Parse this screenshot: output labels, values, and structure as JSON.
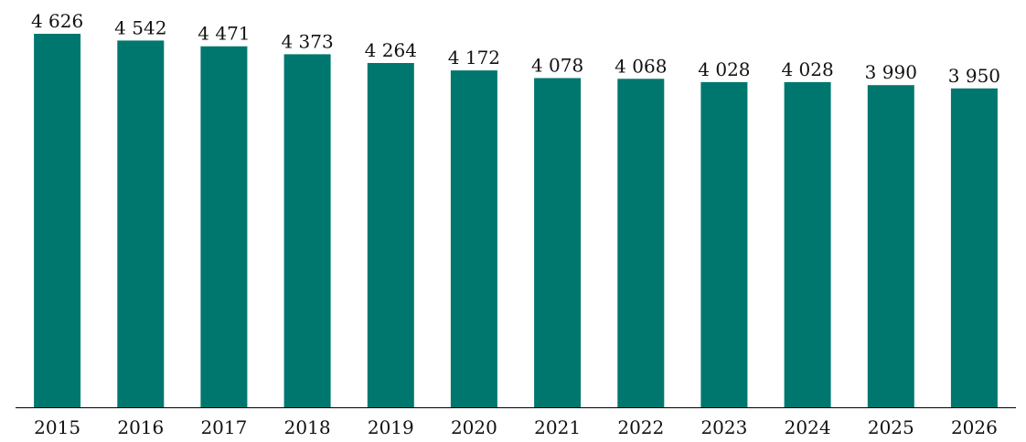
{
  "chart_data": {
    "type": "bar",
    "categories": [
      "2015",
      "2016",
      "2017",
      "2018",
      "2019",
      "2020",
      "2021",
      "2022",
      "2023",
      "2024",
      "2025",
      "2026"
    ],
    "values": [
      4626,
      4542,
      4471,
      4373,
      4264,
      4172,
      4078,
      4068,
      4028,
      4028,
      3990,
      3950
    ],
    "value_labels": [
      "4 626",
      "4 542",
      "4 471",
      "4 373",
      "4 264",
      "4 172",
      "4 078",
      "4 068",
      "4 028",
      "4 028",
      "3 990",
      "3 950"
    ],
    "title": "",
    "xlabel": "",
    "ylabel": "",
    "ylim": [
      0,
      4626
    ],
    "grid": false,
    "legend": "none",
    "colors": {
      "bar": "#00776E",
      "axis": "#000000",
      "text": "#111111"
    }
  }
}
